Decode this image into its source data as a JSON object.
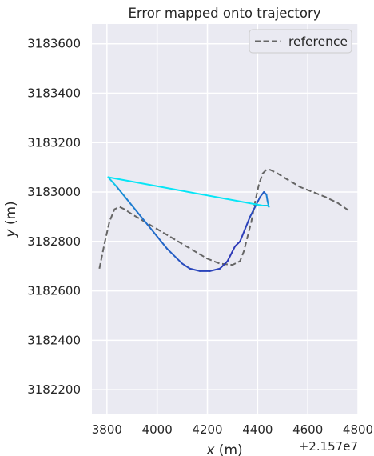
{
  "chart_data": {
    "type": "line",
    "title": "Error mapped onto trajectory",
    "xlabel": "x (m)",
    "ylabel": "y (m)",
    "x_offset_label": "+2.157e7",
    "xlim": [
      3740,
      4800
    ],
    "ylim": [
      3182100,
      3183680
    ],
    "x_ticks": [
      3800,
      4000,
      4200,
      4400,
      4600,
      4800
    ],
    "x_tick_labels": [
      "3800",
      "4000",
      "4200",
      "4400",
      "4600",
      "4800"
    ],
    "y_ticks": [
      3182200,
      3182400,
      3182600,
      3182800,
      3183000,
      3183200,
      3183400,
      3183600
    ],
    "y_tick_labels": [
      "3182200",
      "3182400",
      "3182600",
      "3182800",
      "3183000",
      "3183200",
      "3183400",
      "3183600"
    ],
    "grid": true,
    "legend": {
      "position": "top-right",
      "entries": [
        "reference"
      ]
    },
    "colors": {
      "plot_background": "#eaeaf2",
      "grid": "#ffffff",
      "reference": "#666666",
      "error_low": "#00ffff",
      "error_high": "#2f2fb3"
    },
    "series": [
      {
        "name": "reference",
        "style": "dashed",
        "x": [
          3770,
          3790,
          3810,
          3830,
          3850,
          3870,
          3900,
          3950,
          4000,
          4050,
          4100,
          4150,
          4200,
          4250,
          4300,
          4330,
          4345,
          4360,
          4375,
          4390,
          4405,
          4420,
          4435,
          4450,
          4480,
          4520,
          4570,
          4620,
          4670,
          4720,
          4770
        ],
        "y": [
          3182690,
          3182790,
          3182880,
          3182930,
          3182940,
          3182930,
          3182910,
          3182880,
          3182850,
          3182820,
          3182790,
          3182760,
          3182730,
          3182710,
          3182705,
          3182720,
          3182760,
          3182820,
          3182880,
          3182960,
          3183030,
          3183075,
          3183090,
          3183090,
          3183075,
          3183050,
          3183020,
          3183000,
          3182980,
          3182955,
          3182920
        ]
      },
      {
        "style": "solid-colormap",
        "x": [
          3805,
          3840,
          3880,
          3920,
          3960,
          4000,
          4040,
          4080,
          4100,
          4130,
          4170,
          4210,
          4250,
          4280,
          4310,
          4330,
          4350,
          4370,
          4390,
          4410,
          4425,
          4435,
          4440,
          4445,
          4440,
          4420,
          3805
        ],
        "y": [
          3183060,
          3183020,
          3182970,
          3182920,
          3182870,
          3182820,
          3182770,
          3182730,
          3182710,
          3182690,
          3182680,
          3182680,
          3182690,
          3182720,
          3182780,
          3182800,
          3182850,
          3182900,
          3182940,
          3182980,
          3183000,
          3182990,
          3182960,
          3182940,
          3182945,
          3182945,
          3183060
        ],
        "error": [
          0.05,
          0.5,
          0.6,
          0.65,
          0.7,
          0.72,
          0.75,
          0.8,
          0.85,
          0.88,
          0.9,
          0.9,
          0.92,
          0.95,
          0.95,
          0.95,
          0.92,
          0.9,
          0.85,
          0.8,
          0.78,
          0.7,
          0.55,
          0.4,
          0.3,
          0.2,
          0.05
        ]
      }
    ]
  }
}
